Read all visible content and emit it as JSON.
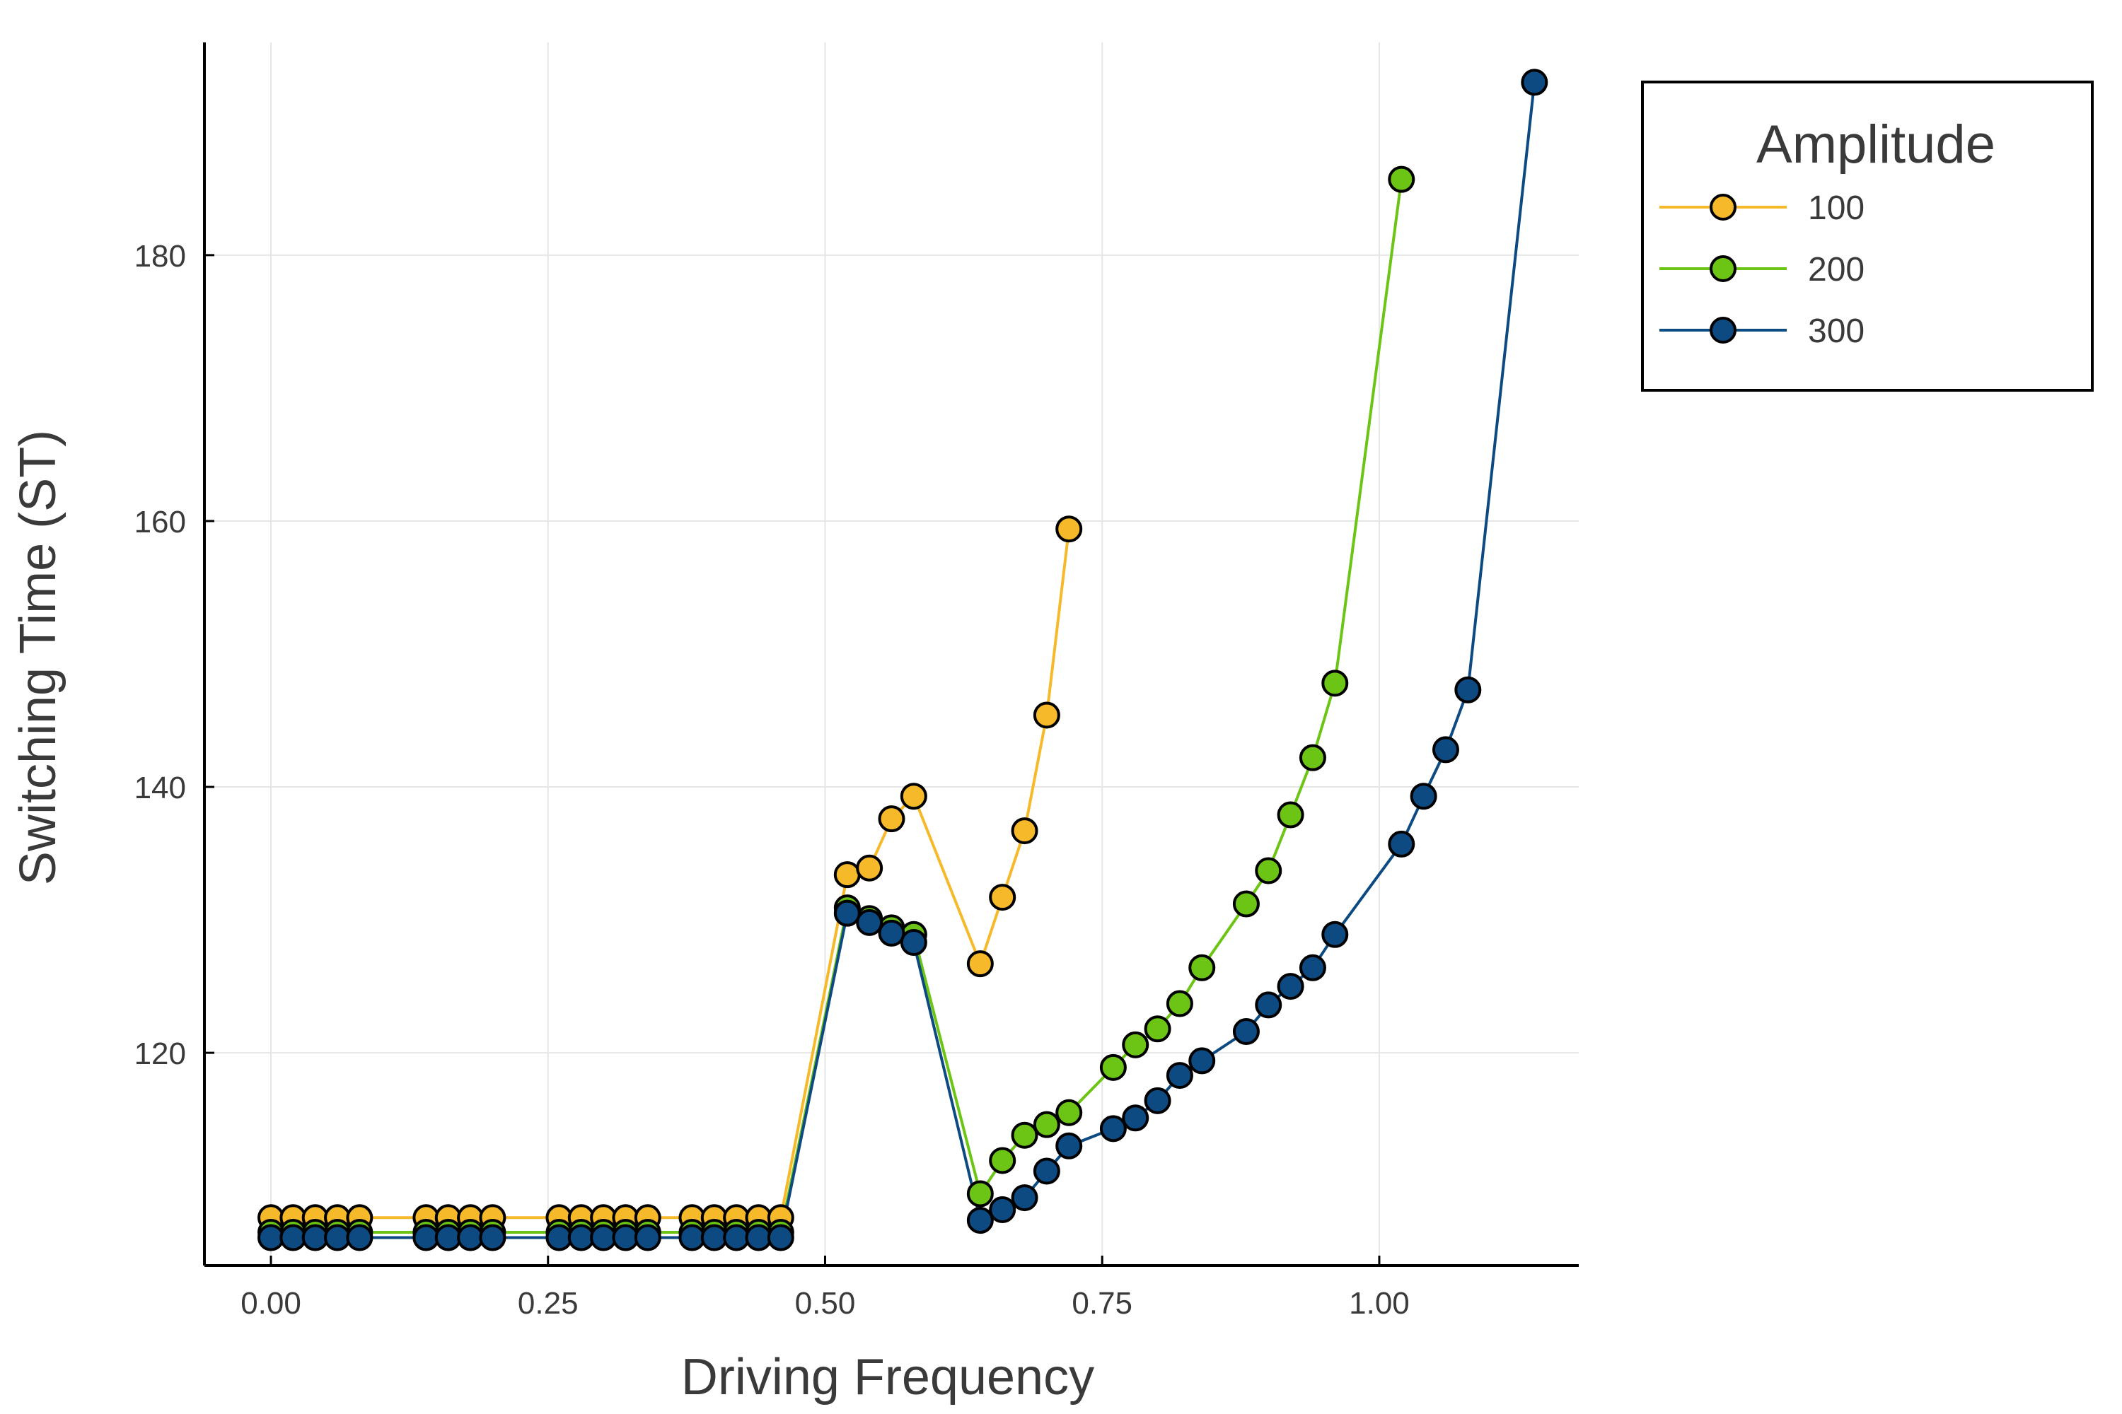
{
  "chart_data": {
    "type": "line",
    "xlabel": "Driving Frequency",
    "ylabel": "Switching Time (ST)",
    "xlim": [
      -0.06,
      1.18
    ],
    "ylim": [
      104,
      196
    ],
    "xticks": [
      "0.00",
      "0.25",
      "0.50",
      "0.75",
      "1.00"
    ],
    "yticks": [
      "120",
      "140",
      "160",
      "180"
    ],
    "grid": true,
    "legend": {
      "title": "Amplitude",
      "placement": "outside-right-top",
      "entries": [
        "100",
        "200",
        "300"
      ]
    },
    "series": [
      {
        "name": "100",
        "color": "#F6B92A",
        "x": [
          0.0,
          0.02,
          0.04,
          0.06,
          0.08,
          0.14,
          0.16,
          0.18,
          0.2,
          0.26,
          0.28,
          0.3,
          0.32,
          0.34,
          0.38,
          0.4,
          0.42,
          0.44,
          0.46,
          0.52,
          0.54,
          0.56,
          0.58,
          0.64,
          0.66,
          0.68,
          0.7,
          0.72
        ],
        "y": [
          107.6,
          107.6,
          107.6,
          107.6,
          107.6,
          107.6,
          107.6,
          107.6,
          107.6,
          107.6,
          107.6,
          107.6,
          107.6,
          107.6,
          107.6,
          107.6,
          107.6,
          107.6,
          107.6,
          133.4,
          133.9,
          137.6,
          139.3,
          126.7,
          131.7,
          136.7,
          145.4,
          159.4
        ]
      },
      {
        "name": "200",
        "color": "#6CC515",
        "x": [
          0.0,
          0.02,
          0.04,
          0.06,
          0.08,
          0.14,
          0.16,
          0.18,
          0.2,
          0.26,
          0.28,
          0.3,
          0.32,
          0.34,
          0.38,
          0.4,
          0.42,
          0.44,
          0.46,
          0.52,
          0.54,
          0.56,
          0.58,
          0.64,
          0.66,
          0.68,
          0.7,
          0.72,
          0.76,
          0.78,
          0.8,
          0.82,
          0.84,
          0.88,
          0.9,
          0.92,
          0.94,
          0.96,
          1.02
        ],
        "y": [
          106.5,
          106.5,
          106.5,
          106.5,
          106.5,
          106.5,
          106.5,
          106.5,
          106.5,
          106.5,
          106.5,
          106.5,
          106.5,
          106.5,
          106.5,
          106.5,
          106.5,
          106.5,
          106.5,
          130.9,
          130.1,
          129.4,
          128.9,
          109.4,
          111.9,
          113.8,
          114.6,
          115.5,
          118.9,
          120.6,
          121.8,
          123.7,
          126.4,
          131.2,
          133.7,
          137.9,
          142.2,
          147.8,
          185.7
        ]
      },
      {
        "name": "300",
        "color": "#0D4A82",
        "x": [
          0.0,
          0.02,
          0.04,
          0.06,
          0.08,
          0.14,
          0.16,
          0.18,
          0.2,
          0.26,
          0.28,
          0.3,
          0.32,
          0.34,
          0.38,
          0.4,
          0.42,
          0.44,
          0.46,
          0.52,
          0.54,
          0.56,
          0.58,
          0.64,
          0.66,
          0.68,
          0.7,
          0.72,
          0.76,
          0.78,
          0.8,
          0.82,
          0.84,
          0.88,
          0.9,
          0.92,
          0.94,
          0.96,
          1.02,
          1.04,
          1.06,
          1.08,
          1.14
        ],
        "y": [
          106.1,
          106.1,
          106.1,
          106.1,
          106.1,
          106.1,
          106.1,
          106.1,
          106.1,
          106.1,
          106.1,
          106.1,
          106.1,
          106.1,
          106.1,
          106.1,
          106.1,
          106.1,
          106.1,
          130.5,
          129.8,
          129.0,
          128.3,
          107.4,
          108.2,
          109.1,
          111.1,
          113.0,
          114.3,
          115.1,
          116.4,
          118.3,
          119.4,
          121.6,
          123.6,
          125.0,
          126.4,
          128.9,
          135.7,
          139.3,
          142.8,
          147.3,
          193.0
        ]
      }
    ]
  }
}
